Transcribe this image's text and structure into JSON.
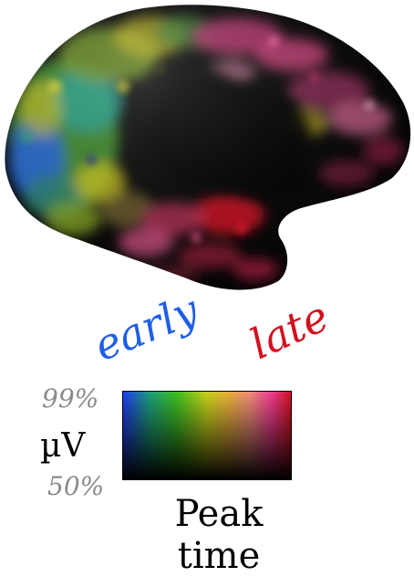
{
  "colormap": {
    "label_early": "early",
    "label_late": "late",
    "color_early": "#1e5fe6",
    "color_late": "#d4101e",
    "amplitude_high": "99%",
    "amplitude_low": "50%",
    "amplitude_unit": "µV",
    "axis_line1": "Peak",
    "axis_line2": "time"
  }
}
